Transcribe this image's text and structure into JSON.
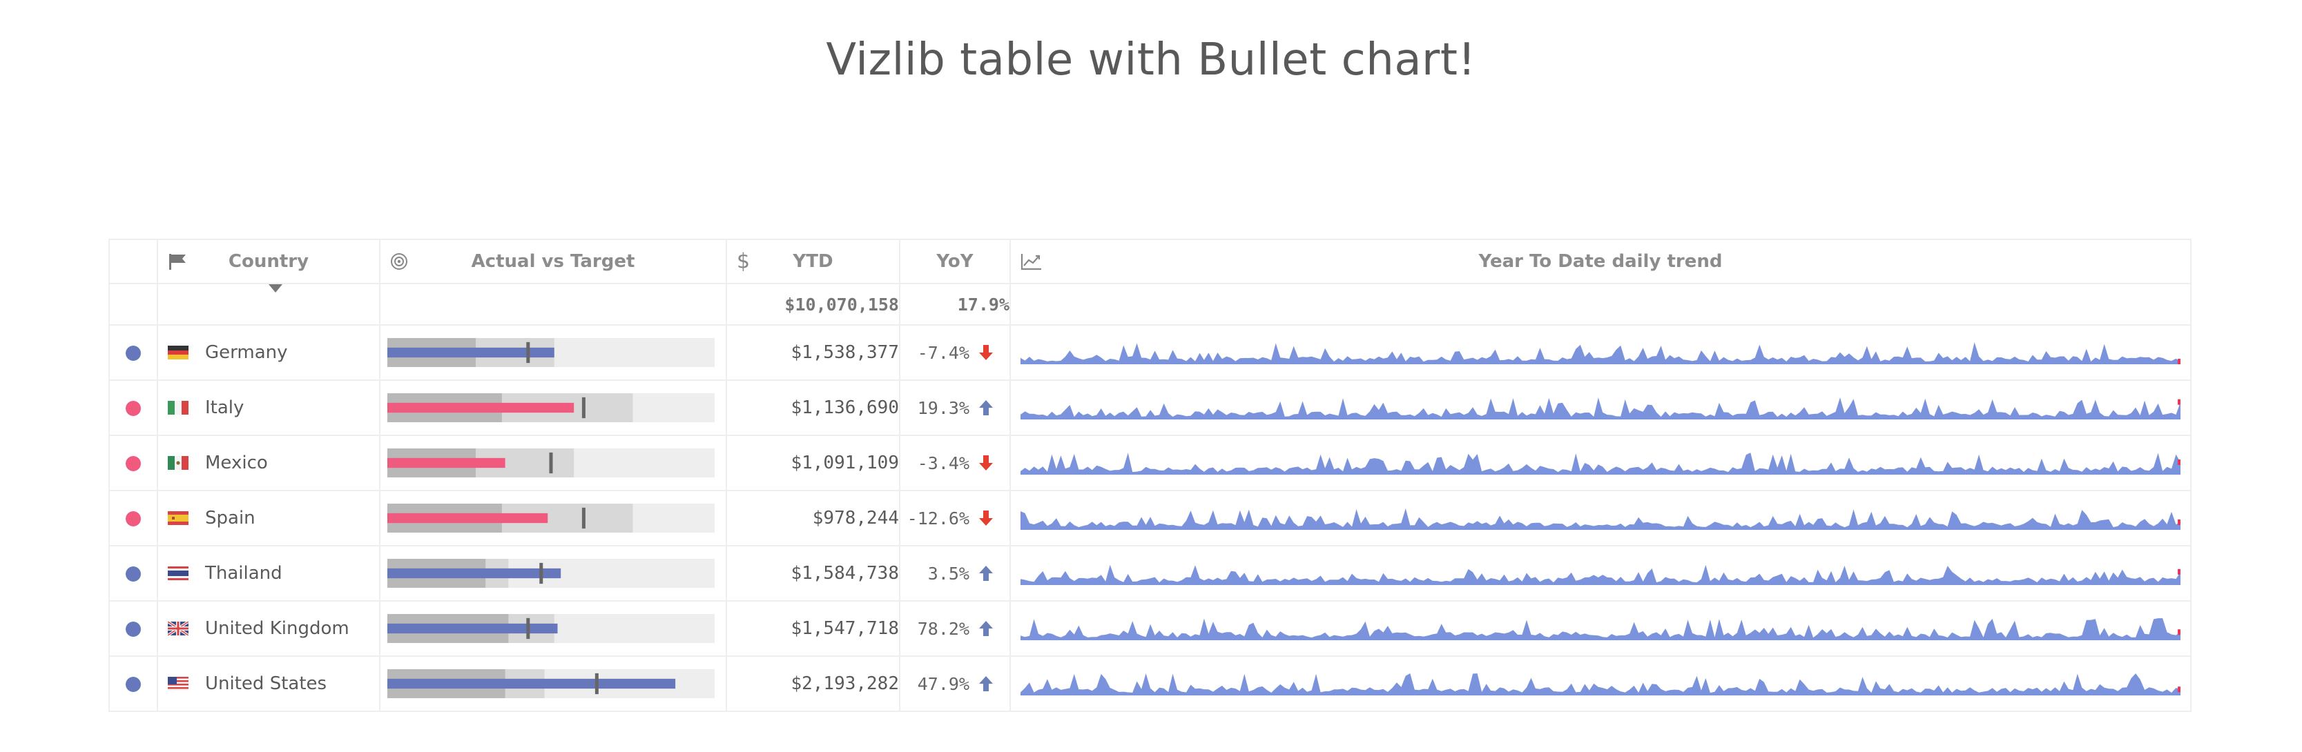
{
  "page": {
    "title": "Vizlib table with Bullet chart!"
  },
  "colors": {
    "blue": "#6677bb",
    "pink": "#f05a7e",
    "spark_fill": "#7b93dc",
    "spark_end": "#e5385a",
    "arrow_down": "#e53e2e",
    "arrow_up": "#6a7fb8",
    "range_dark": "#b8b8b8",
    "range_mid": "#d8d8d8",
    "range_light": "#eeeeee",
    "target_marker": "#666666"
  },
  "table": {
    "headers": {
      "country": "Country",
      "actual_vs_target": "Actual vs Target",
      "ytd": "YTD",
      "yoy": "YoY",
      "trend": "Year To Date daily trend"
    },
    "header_icons": {
      "country": "flag-icon",
      "actual_vs_target": "target-icon",
      "ytd": "dollar-icon",
      "trend": "line-chart-icon"
    },
    "totals": {
      "ytd": "$10,070,158",
      "yoy": "17.9%"
    },
    "rows": [
      {
        "indicator": "blue",
        "flag": "de",
        "country": "Germany",
        "ytd": "$1,538,377",
        "yoy": "-7.4%",
        "trend": "down",
        "bullet": {
          "actual": 0.51,
          "target": 0.43,
          "range1": 0.27,
          "range2": 0.51,
          "range3": 1.0
        }
      },
      {
        "indicator": "pink",
        "flag": "it",
        "country": "Italy",
        "ytd": "$1,136,690",
        "yoy": "19.3%",
        "trend": "up",
        "bullet": {
          "actual": 0.57,
          "target": 0.6,
          "range1": 0.35,
          "range2": 0.75,
          "range3": 1.0
        }
      },
      {
        "indicator": "pink",
        "flag": "mx",
        "country": "Mexico",
        "ytd": "$1,091,109",
        "yoy": "-3.4%",
        "trend": "down",
        "bullet": {
          "actual": 0.36,
          "target": 0.5,
          "range1": 0.27,
          "range2": 0.57,
          "range3": 1.0
        }
      },
      {
        "indicator": "pink",
        "flag": "es",
        "country": "Spain",
        "ytd": "$978,244",
        "yoy": "-12.6%",
        "trend": "down",
        "bullet": {
          "actual": 0.49,
          "target": 0.6,
          "range1": 0.35,
          "range2": 0.75,
          "range3": 1.0
        }
      },
      {
        "indicator": "blue",
        "flag": "th",
        "country": "Thailand",
        "ytd": "$1,584,738",
        "yoy": "3.5%",
        "trend": "up",
        "bullet": {
          "actual": 0.53,
          "target": 0.47,
          "range1": 0.3,
          "range2": 0.37,
          "range3": 1.0
        }
      },
      {
        "indicator": "blue",
        "flag": "gb",
        "country": "United Kingdom",
        "ytd": "$1,547,718",
        "yoy": "78.2%",
        "trend": "up",
        "bullet": {
          "actual": 0.52,
          "target": 0.43,
          "range1": 0.37,
          "range2": 0.51,
          "range3": 1.0
        }
      },
      {
        "indicator": "blue",
        "flag": "us",
        "country": "United States",
        "ytd": "$2,193,282",
        "yoy": "47.9%",
        "trend": "up",
        "bullet": {
          "actual": 0.88,
          "target": 0.64,
          "range1": 0.36,
          "range2": 0.48,
          "range3": 1.0
        }
      }
    ]
  }
}
